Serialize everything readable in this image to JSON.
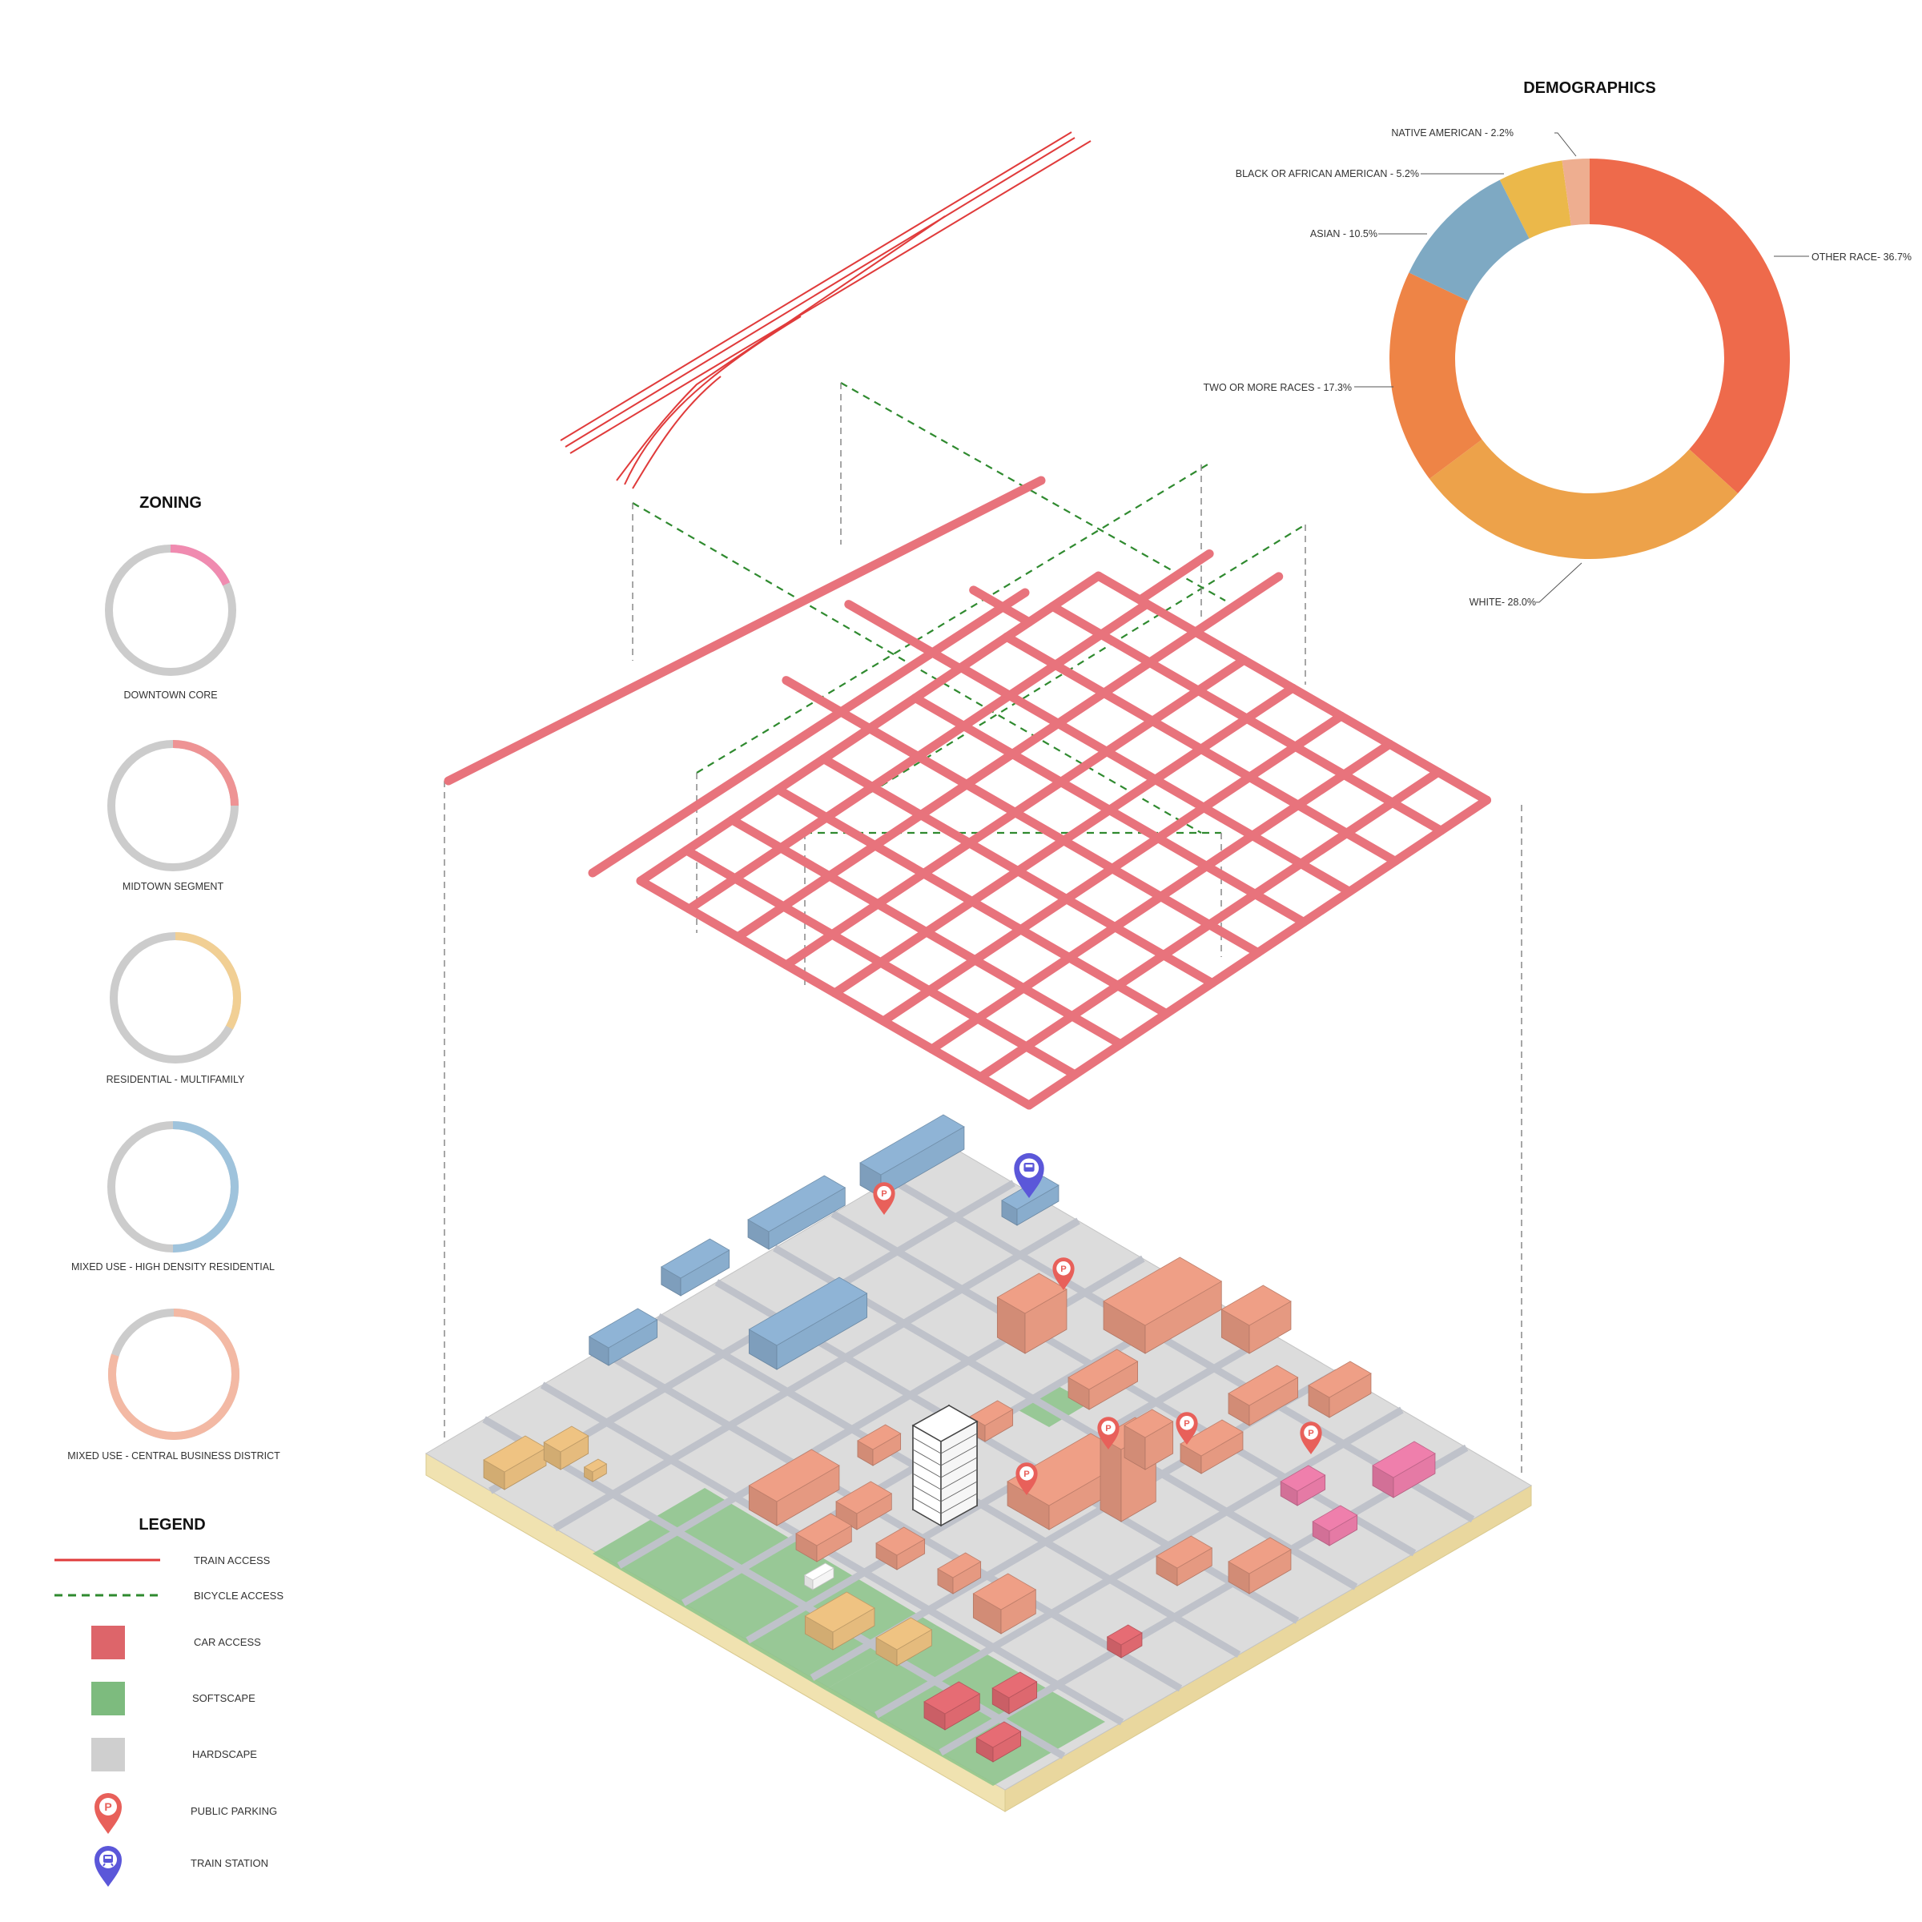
{
  "demographics": {
    "title": "DEMOGRAPHICS",
    "slices": [
      {
        "label": "OTHER RACE- 36.7%",
        "value": 36.7,
        "color": "#ee6a4b"
      },
      {
        "label": "WHITE- 28.0%",
        "value": 28.0,
        "color": "#eda24a"
      },
      {
        "label": "TWO OR MORE RACES - 17.3%",
        "value": 17.3,
        "color": "#ee8446"
      },
      {
        "label": "ASIAN - 10.5%",
        "value": 10.5,
        "color": "#7ea9c3"
      },
      {
        "label": "BLACK OR AFRICAN AMERICAN - 5.2%",
        "value": 5.2,
        "color": "#ebb84a"
      },
      {
        "label": "NATIVE AMERICAN - 2.2%",
        "value": 2.2,
        "color": "#eeae90"
      }
    ]
  },
  "zoning": {
    "title": "ZONING",
    "items": [
      {
        "label": "DOWNTOWN CORE",
        "fraction": 0.18,
        "color": "#f08bb0"
      },
      {
        "label": "MIDTOWN SEGMENT",
        "fraction": 0.25,
        "color": "#ee9394"
      },
      {
        "label": "RESIDENTIAL - MULTIFAMILY",
        "fraction": 0.33,
        "color": "#f1cf94"
      },
      {
        "label": "MIXED USE - HIGH DENSITY RESIDENTIAL",
        "fraction": 0.5,
        "color": "#9fc3dc"
      },
      {
        "label": "MIXED USE - CENTRAL BUSINESS DISTRICT",
        "fraction": 0.8,
        "color": "#f3b9a4"
      }
    ],
    "track_color": "#cccccc"
  },
  "legend": {
    "title": "LEGEND",
    "items": [
      {
        "label": "TRAIN ACCESS",
        "icon": "train-line-icon",
        "color": "#e03b3b"
      },
      {
        "label": "BICYCLE ACCESS",
        "icon": "bicycle-line-icon",
        "color": "#2f8a2f"
      },
      {
        "label": "CAR ACCESS",
        "icon": "car-swatch-icon",
        "color": "#d9545a"
      },
      {
        "label": "SOFTSCAPE",
        "icon": "softscape-swatch-icon",
        "color": "#7dbb7e"
      },
      {
        "label": "HARDSCAPE",
        "icon": "hardscape-swatch-icon",
        "color": "#cfcfcf"
      },
      {
        "label": "PUBLIC PARKING",
        "icon": "parking-pin-icon",
        "color": "#e8605a"
      },
      {
        "label": "TRAIN STATION",
        "icon": "train-station-pin-icon",
        "color": "#5b57d9"
      }
    ]
  },
  "map_colors": {
    "road_red": "#e8737c",
    "road_red_edge": "#d45b65",
    "ground": "#dcdcdc",
    "base_side": "#f0e2b0",
    "street": "#bfc2ca",
    "green": "#8cc48a",
    "blue_bldg": "#8fb4d6",
    "salmon_bldg": "#ef9f86",
    "yellow_bldg": "#efc382",
    "pink_bldg": "#ef7fac",
    "red_bldg": "#e66c74",
    "white_bldg": "#ffffff"
  }
}
